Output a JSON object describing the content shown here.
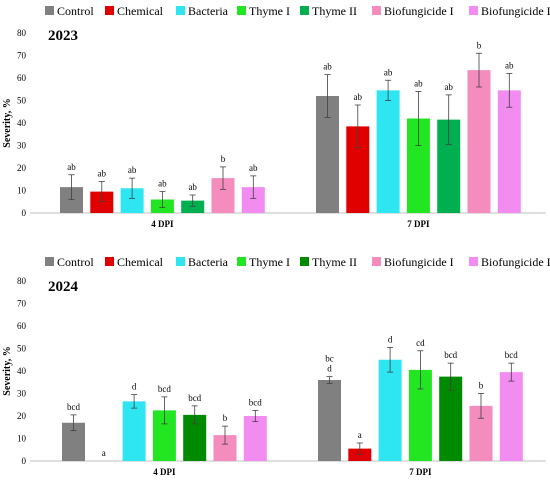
{
  "chart_data": [
    {
      "type": "bar",
      "title": "2023",
      "ylabel": "Severity, %",
      "ylim": [
        0,
        80
      ],
      "yticks": [
        0,
        10,
        20,
        30,
        40,
        50,
        60,
        70,
        80
      ],
      "grid": false,
      "legend_position": "top",
      "categories": [
        "4 DPI",
        "7 DPI"
      ],
      "series": [
        {
          "name": "Control",
          "color": "#808080",
          "values": [
            11.5,
            52
          ],
          "errors": [
            5.5,
            9.5
          ],
          "letters": [
            "ab",
            "ab"
          ]
        },
        {
          "name": "Chemical",
          "color": "#e00000",
          "values": [
            9.5,
            38.5
          ],
          "errors": [
            4.5,
            9.5
          ],
          "letters": [
            "ab",
            "ab"
          ]
        },
        {
          "name": "Bacteria",
          "color": "#2ee6f2",
          "values": [
            11,
            54.5
          ],
          "errors": [
            4.5,
            4.5
          ],
          "letters": [
            "ab",
            "ab"
          ]
        },
        {
          "name": "Thyme I",
          "color": "#22e622",
          "values": [
            6,
            42
          ],
          "errors": [
            3.5,
            12
          ],
          "letters": [
            "ab",
            "ab"
          ]
        },
        {
          "name": "Thyme II",
          "color": "#00b050",
          "values": [
            5.5,
            41.5
          ],
          "errors": [
            2.5,
            11
          ],
          "letters": [
            "ab",
            "ab"
          ]
        },
        {
          "name": "Biofungicide I",
          "color": "#f48cbe",
          "values": [
            15.5,
            63.5
          ],
          "errors": [
            5,
            7.5
          ],
          "letters": [
            "b",
            "b"
          ]
        },
        {
          "name": "Biofungicide II",
          "color": "#f28cf0",
          "values": [
            11.5,
            54.5
          ],
          "errors": [
            5,
            7.5
          ],
          "letters": [
            "ab",
            "ab"
          ]
        }
      ]
    },
    {
      "type": "bar",
      "title": "2024",
      "ylabel": "Severity, %",
      "ylim": [
        0,
        80
      ],
      "yticks": [
        0,
        10,
        20,
        30,
        40,
        50,
        60,
        70,
        80
      ],
      "grid": false,
      "legend_position": "top",
      "categories": [
        "4 DPI",
        "7 DPI"
      ],
      "series": [
        {
          "name": "Control",
          "color": "#808080",
          "values": [
            17,
            36
          ],
          "errors": [
            3.5,
            1.5
          ],
          "letters": [
            "bcd",
            "bc\nd"
          ]
        },
        {
          "name": "Chemical",
          "color": "#e00000",
          "values": [
            0,
            5.5
          ],
          "errors": [
            0,
            2.5
          ],
          "letters": [
            "a",
            "a"
          ]
        },
        {
          "name": "Bacteria",
          "color": "#2ee6f2",
          "values": [
            26.5,
            45
          ],
          "errors": [
            3,
            5.5
          ],
          "letters": [
            "d",
            "d"
          ]
        },
        {
          "name": "Thyme I",
          "color": "#22e622",
          "values": [
            22.5,
            40.5
          ],
          "errors": [
            6,
            8.5
          ],
          "letters": [
            "bcd",
            "cd"
          ]
        },
        {
          "name": "Thyme II",
          "color": "#008a00",
          "values": [
            20.5,
            37.5
          ],
          "errors": [
            4,
            6
          ],
          "letters": [
            "bcd",
            "bcd"
          ]
        },
        {
          "name": "Biofungicide I",
          "color": "#f48cbe",
          "values": [
            11.5,
            24.5
          ],
          "errors": [
            4,
            5.5
          ],
          "letters": [
            "b",
            "b"
          ]
        },
        {
          "name": "Biofungicide II",
          "color": "#f28cf0",
          "values": [
            20,
            39.5
          ],
          "errors": [
            2.5,
            4
          ],
          "letters": [
            "bcd",
            "bcd"
          ]
        }
      ]
    }
  ]
}
